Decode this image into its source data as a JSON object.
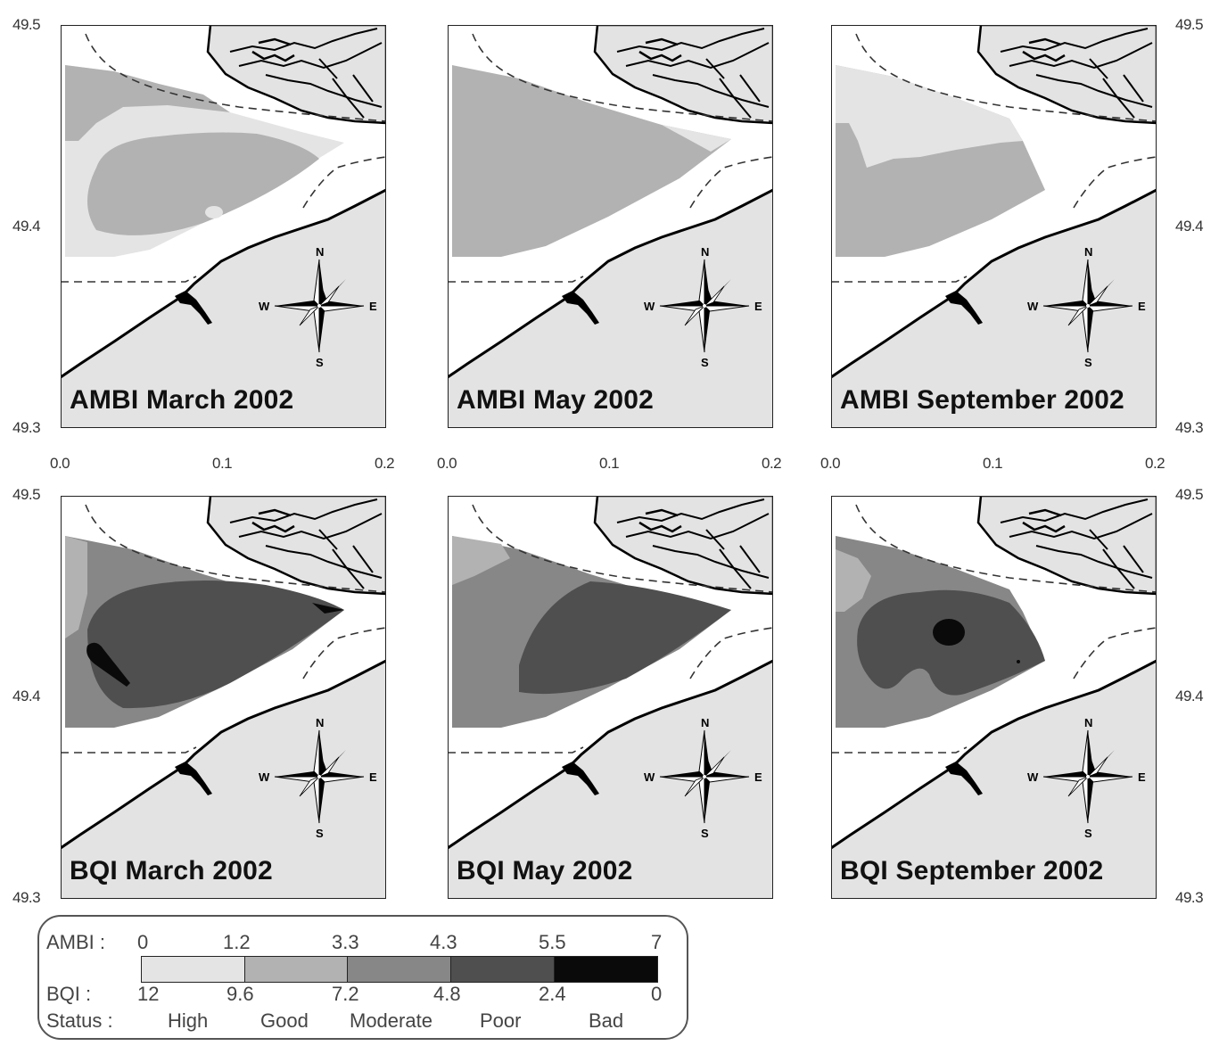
{
  "panels": [
    {
      "label": "AMBI March 2002"
    },
    {
      "label": "AMBI May 2002"
    },
    {
      "label": "AMBI September 2002"
    },
    {
      "label": "BQI March 2002"
    },
    {
      "label": "BQI May 2002"
    },
    {
      "label": "BQI September 2002"
    }
  ],
  "axes": {
    "y_top": "49.5",
    "y_mid": "49.4",
    "y_bottom": "49.3",
    "x_ticks": [
      "0.0",
      "0.1",
      "0.2"
    ]
  },
  "compass": {
    "n": "N",
    "s": "S",
    "e": "E",
    "w": "W"
  },
  "legend": {
    "ambi_label": "AMBI :",
    "ambi_values": [
      "0",
      "1.2",
      "3.3",
      "4.3",
      "5.5",
      "7"
    ],
    "bqi_label": "BQI :",
    "bqi_values": [
      "12",
      "9.6",
      "7.2",
      "4.8",
      "2.4",
      "0"
    ],
    "status_label": "Status :",
    "status_values": [
      "High",
      "Good",
      "Moderate",
      "Poor",
      "Bad"
    ],
    "colors": [
      "#e4e4e4",
      "#b2b2b2",
      "#878787",
      "#4f4f4f",
      "#0a0a0a"
    ]
  }
}
